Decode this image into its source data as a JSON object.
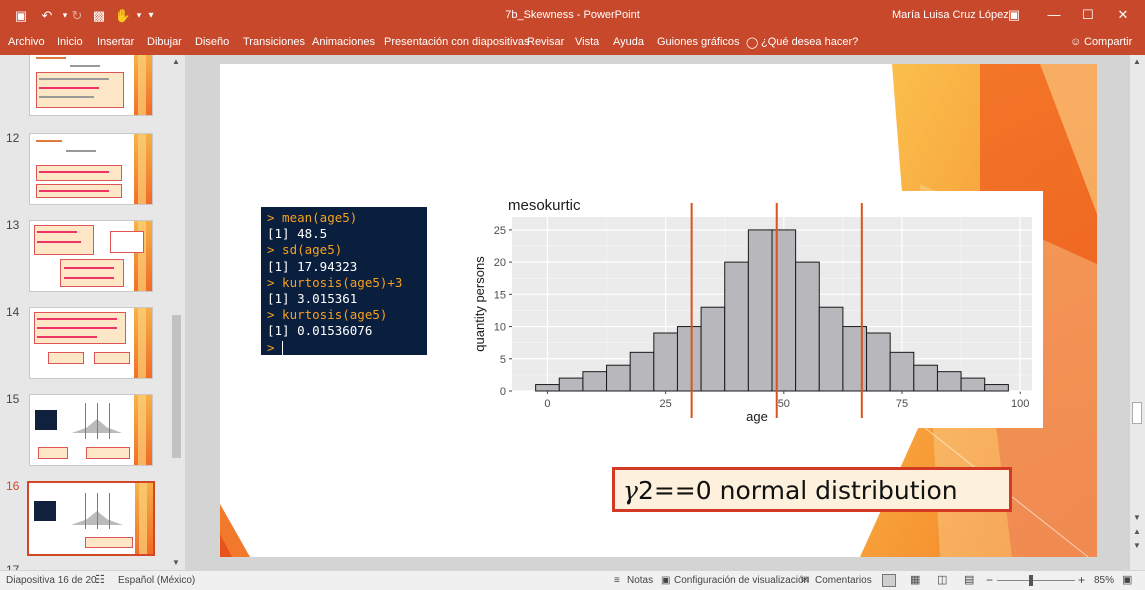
{
  "app": {
    "doc_title": "7b_Skewness - PowerPoint",
    "user_name": "María Luisa Cruz López",
    "colors": {
      "brand": "#c8482b",
      "accent": "#d24726"
    }
  },
  "quick_access": [
    {
      "icon": "save-icon",
      "glyph": "🖫"
    },
    {
      "icon": "undo-icon",
      "glyph": "↶"
    },
    {
      "icon": "redo-icon",
      "glyph": "↷"
    },
    {
      "icon": "present-icon",
      "glyph": "▣"
    },
    {
      "icon": "touch-mode-icon",
      "glyph": "✋"
    },
    {
      "icon": "customize-icon",
      "glyph": "≡"
    }
  ],
  "ribbon_tabs": [
    "Archivo",
    "Inicio",
    "Insertar",
    "Dibujar",
    "Diseño",
    "Transiciones",
    "Animaciones",
    "Presentación con diapositivas",
    "Revisar",
    "Vista",
    "Ayuda",
    "Guiones gráficos"
  ],
  "tell_me": "¿Qué desea hacer?",
  "share_label": "Compartir",
  "thumbnails": [
    {
      "num": "",
      "top": 0
    },
    {
      "num": "12",
      "top": 0
    },
    {
      "num": "13",
      "top": 0
    },
    {
      "num": "14",
      "top": 0
    },
    {
      "num": "15",
      "top": 0
    },
    {
      "num": "16",
      "top": 0
    }
  ],
  "console": {
    "lines": [
      {
        "kind": "cmd",
        "text": "> mean(age5)"
      },
      {
        "kind": "out",
        "text": "[1] 48.5"
      },
      {
        "kind": "cmd",
        "text": "> sd(age5)"
      },
      {
        "kind": "out",
        "text": "[1] 17.94323"
      },
      {
        "kind": "cmd",
        "text": "> kurtosis(age5)+3"
      },
      {
        "kind": "out",
        "text": "[1] 3.015361"
      },
      {
        "kind": "cmd",
        "text": "> kurtosis(age5)"
      },
      {
        "kind": "out",
        "text": "[1] 0.01536076"
      },
      {
        "kind": "cmd",
        "text": "> "
      }
    ]
  },
  "chart_data": {
    "type": "bar",
    "title": "mesokurtic",
    "xlabel": "age",
    "ylabel": "quantity persons",
    "xlim": [
      -7.5,
      102.5
    ],
    "ylim": [
      0,
      27
    ],
    "x_ticks": [
      0,
      25,
      50,
      75,
      100
    ],
    "y_ticks": [
      0,
      5,
      10,
      15,
      20,
      25
    ],
    "bin_width": 5,
    "bin_centers": [
      0,
      5,
      10,
      15,
      20,
      25,
      30,
      35,
      40,
      45,
      50,
      55,
      60,
      65,
      70,
      75,
      80,
      85,
      90,
      95
    ],
    "values": [
      1,
      2,
      3,
      4,
      6,
      9,
      10,
      13,
      20,
      25,
      25,
      20,
      13,
      10,
      9,
      6,
      4,
      3,
      2,
      1
    ],
    "vlines": [
      30.5,
      48.5,
      66.5
    ],
    "colors": {
      "bar": "#b8b8bc",
      "panel": "#ebebeb",
      "vline": "#d9541d"
    },
    "grid": true,
    "legend": "none"
  },
  "callout": {
    "gamma": "γ",
    "rest": "2==0 normal distribution"
  },
  "statusbar": {
    "slide_info": "Diapositiva 16 de 20",
    "language": "Español (México)",
    "notes": "Notas",
    "display_settings": "Configuración de visualización",
    "comments": "Comentarios",
    "zoom": "85%"
  }
}
